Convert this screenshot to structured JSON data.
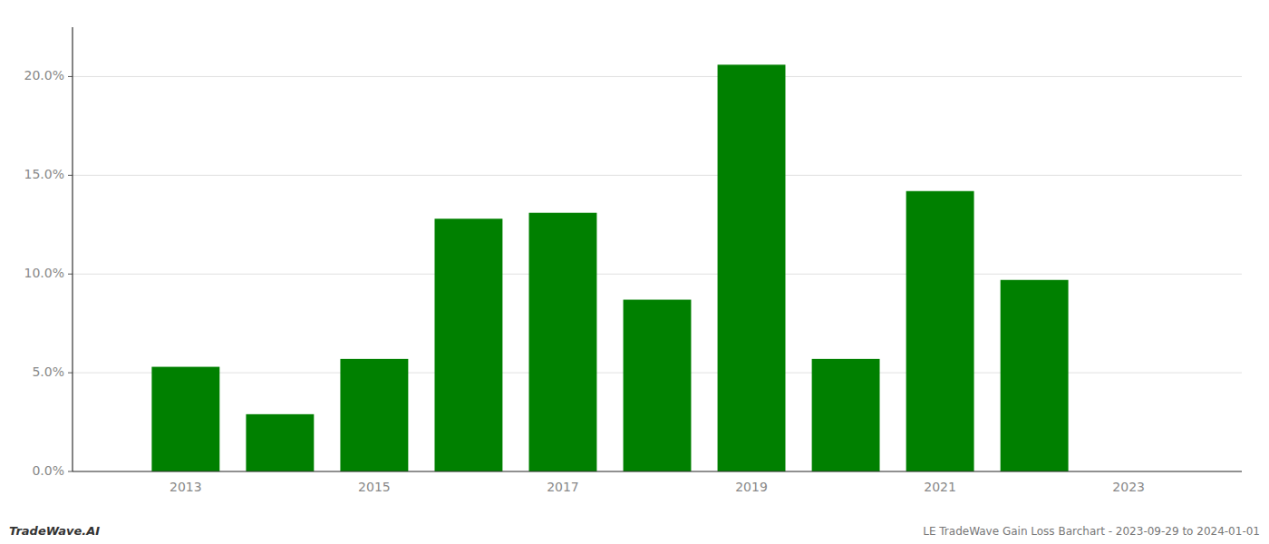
{
  "chart_data": {
    "type": "bar",
    "x": [
      2013,
      2014,
      2015,
      2016,
      2017,
      2018,
      2019,
      2020,
      2021,
      2022
    ],
    "values": [
      0.053,
      0.029,
      0.057,
      0.128,
      0.131,
      0.087,
      0.206,
      0.057,
      0.142,
      0.097
    ],
    "color": "#008000",
    "xlim": [
      2011.8,
      2024.2
    ],
    "xticks": [
      2013,
      2015,
      2017,
      2019,
      2021,
      2023
    ],
    "ylim": [
      0,
      0.225
    ],
    "yticks": [
      {
        "value": 0.0,
        "label": "0.0%"
      },
      {
        "value": 0.05,
        "label": "5.0%"
      },
      {
        "value": 0.1,
        "label": "10.0%"
      },
      {
        "value": 0.15,
        "label": "15.0%"
      },
      {
        "value": 0.2,
        "label": "20.0%"
      }
    ],
    "grid": true,
    "annotations": [
      "TradeWave.AI",
      "LE TradeWave Gain Loss Barchart - 2023-09-29 to 2024-01-01"
    ]
  }
}
